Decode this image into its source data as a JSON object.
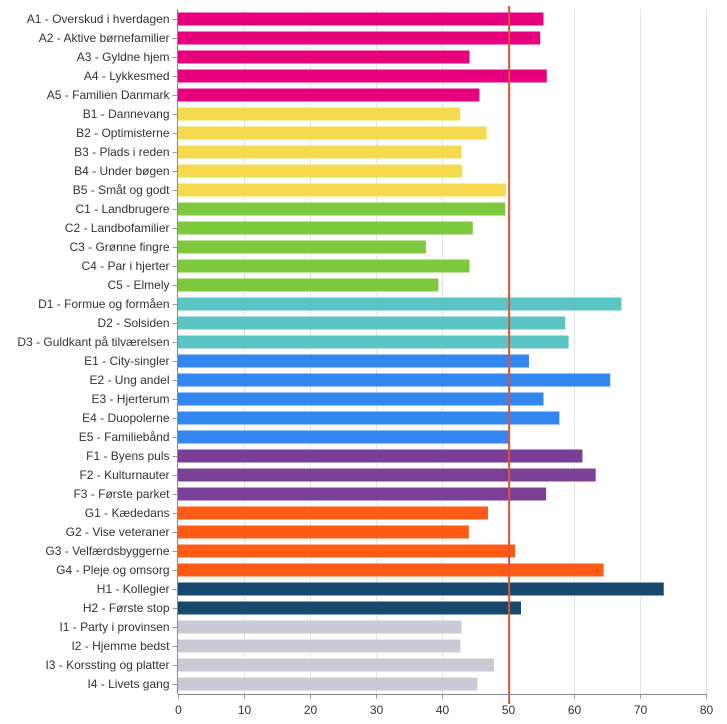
{
  "chart_data": {
    "type": "bar",
    "orientation": "horizontal",
    "title": "",
    "xlabel": "",
    "ylabel": "",
    "xlim": [
      0,
      80
    ],
    "x_ticks": [
      "0",
      "10",
      "20",
      "30",
      "40",
      "50",
      "60",
      "70",
      "80"
    ],
    "grid": true,
    "reference_line": {
      "value": 50.2,
      "color": "#e0523a"
    },
    "group_colors": {
      "A": "#e6007e",
      "B": "#f5d94e",
      "C": "#7dc93e",
      "D": "#5bc4c4",
      "E": "#3385f0",
      "F": "#7b3f98",
      "G": "#ff5a16",
      "H": "#17496e",
      "I": "#cacad6"
    },
    "categories": [
      "A1 - Overskud i hverdagen",
      "A2 - Aktive børnefamilier",
      "A3 - Gyldne hjem",
      "A4 - Lykkesmed",
      "A5 - Familien Danmark",
      "B1 - Dannevang",
      "B2 - Optimisterne",
      "B3 - Plads i reden",
      "B4 - Under bøgen",
      "B5 - Småt og godt",
      "C1 - Landbrugere",
      "C2 - Landbofamilier",
      "C3 - Grønne fingre",
      "C4 - Par i hjerter",
      "C5 - Elmely",
      "D1 - Formue og formåen",
      "D2 - Solsiden",
      "D3 - Guldkant på tilværelsen",
      "E1 - City-singler",
      "E2 - Ung andel",
      "E3 - Hjerterum",
      "E4 - Duopolerne",
      "E5 - Familiebånd",
      "F1 - Byens puls",
      "F2 - Kulturnauter",
      "F3 - Første parket",
      "G1 - Kædedans",
      "G2 - Vise veteraner",
      "G3 - Velfærdsbyggerne",
      "G4 - Pleje og omsorg",
      "H1 - Kollegier",
      "H2 - Første stop",
      "I1 - Party i provinsen",
      "I2 - Hjemme bedst",
      "I3 - Korssting og platter",
      "I4 - Livets gang"
    ],
    "values": [
      55.4,
      54.9,
      44.2,
      55.9,
      45.7,
      42.8,
      46.8,
      43.0,
      43.1,
      49.7,
      49.6,
      44.7,
      37.6,
      44.2,
      39.5,
      67.2,
      58.7,
      59.2,
      53.2,
      65.5,
      55.4,
      57.8,
      50.2,
      61.3,
      63.3,
      55.8,
      47.0,
      44.1,
      51.1,
      64.5,
      73.6,
      52.0,
      43.0,
      42.8,
      47.9,
      45.4
    ]
  }
}
